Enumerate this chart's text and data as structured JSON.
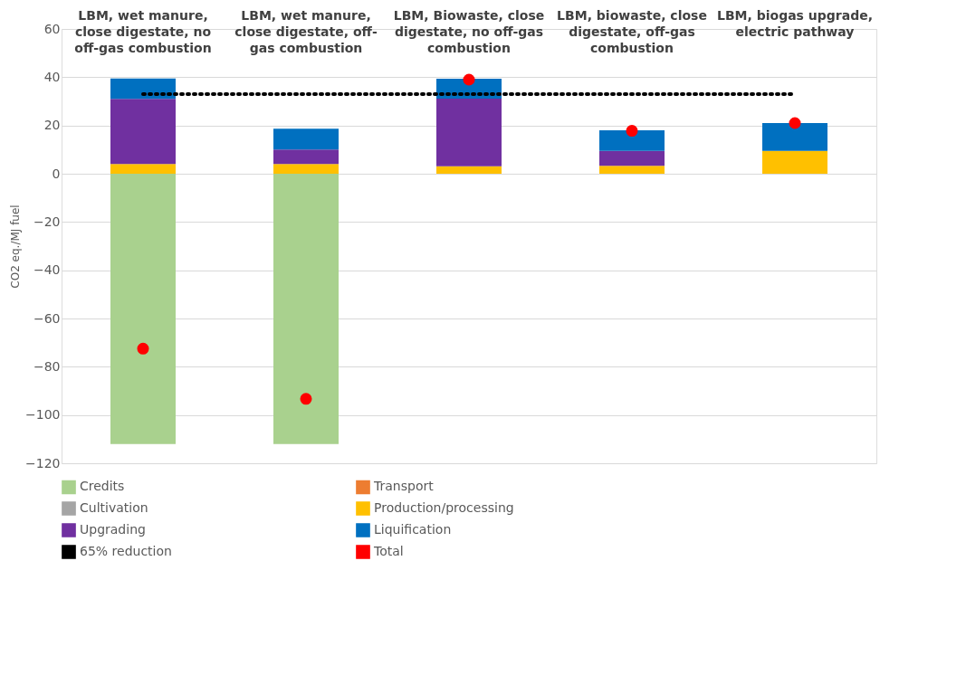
{
  "chart_data": {
    "type": "bar",
    "stacked": true,
    "categories": [
      "LBM, wet manure, close digestate, no off-gas combustion",
      "LBM, wet manure, close digestate, off-gas combustion",
      "LBM, Biowaste, close digestate, no off-gas combustion",
      "LBM, biowaste, close digestate, off-gas combustion",
      "LBM, biogas upgrade, electric pathway"
    ],
    "ylabel": "CO2 eq./MJ fuel",
    "ylim": [
      -120,
      60
    ],
    "yticks": [
      -120,
      -100,
      -80,
      -60,
      -40,
      -20,
      0,
      20,
      40,
      60
    ],
    "grid": "y",
    "legend": "bottom",
    "series": [
      {
        "name": "Credits",
        "color": "#a9d18e",
        "values": [
          -112,
          -112,
          0,
          0,
          0
        ]
      },
      {
        "name": "Transport",
        "color": "#ed7d31",
        "values": [
          0,
          0,
          0,
          0,
          0
        ]
      },
      {
        "name": "Cultivation",
        "color": "#a5a5a5",
        "values": [
          0,
          0,
          0,
          0,
          0
        ]
      },
      {
        "name": "Production/processing",
        "color": "#ffc000",
        "values": [
          4,
          4,
          3.1,
          3.3,
          9.5
        ]
      },
      {
        "name": "Upgrading",
        "color": "#7030a0",
        "values": [
          27,
          6,
          28,
          6.2,
          0
        ]
      },
      {
        "name": "Liquification",
        "color": "#0070c0",
        "values": [
          8.5,
          8.7,
          8.3,
          8.5,
          11.5
        ]
      },
      {
        "name": "65% reduction",
        "type": "line",
        "color": "#000000",
        "line_style": "dotted",
        "marker": "none",
        "values": [
          33,
          33,
          33,
          33,
          33
        ]
      },
      {
        "name": "Total",
        "type": "scatter",
        "color": "#ff0000",
        "marker": "circle",
        "values": [
          -72.5,
          -93.3,
          39,
          17.8,
          21
        ]
      }
    ]
  }
}
